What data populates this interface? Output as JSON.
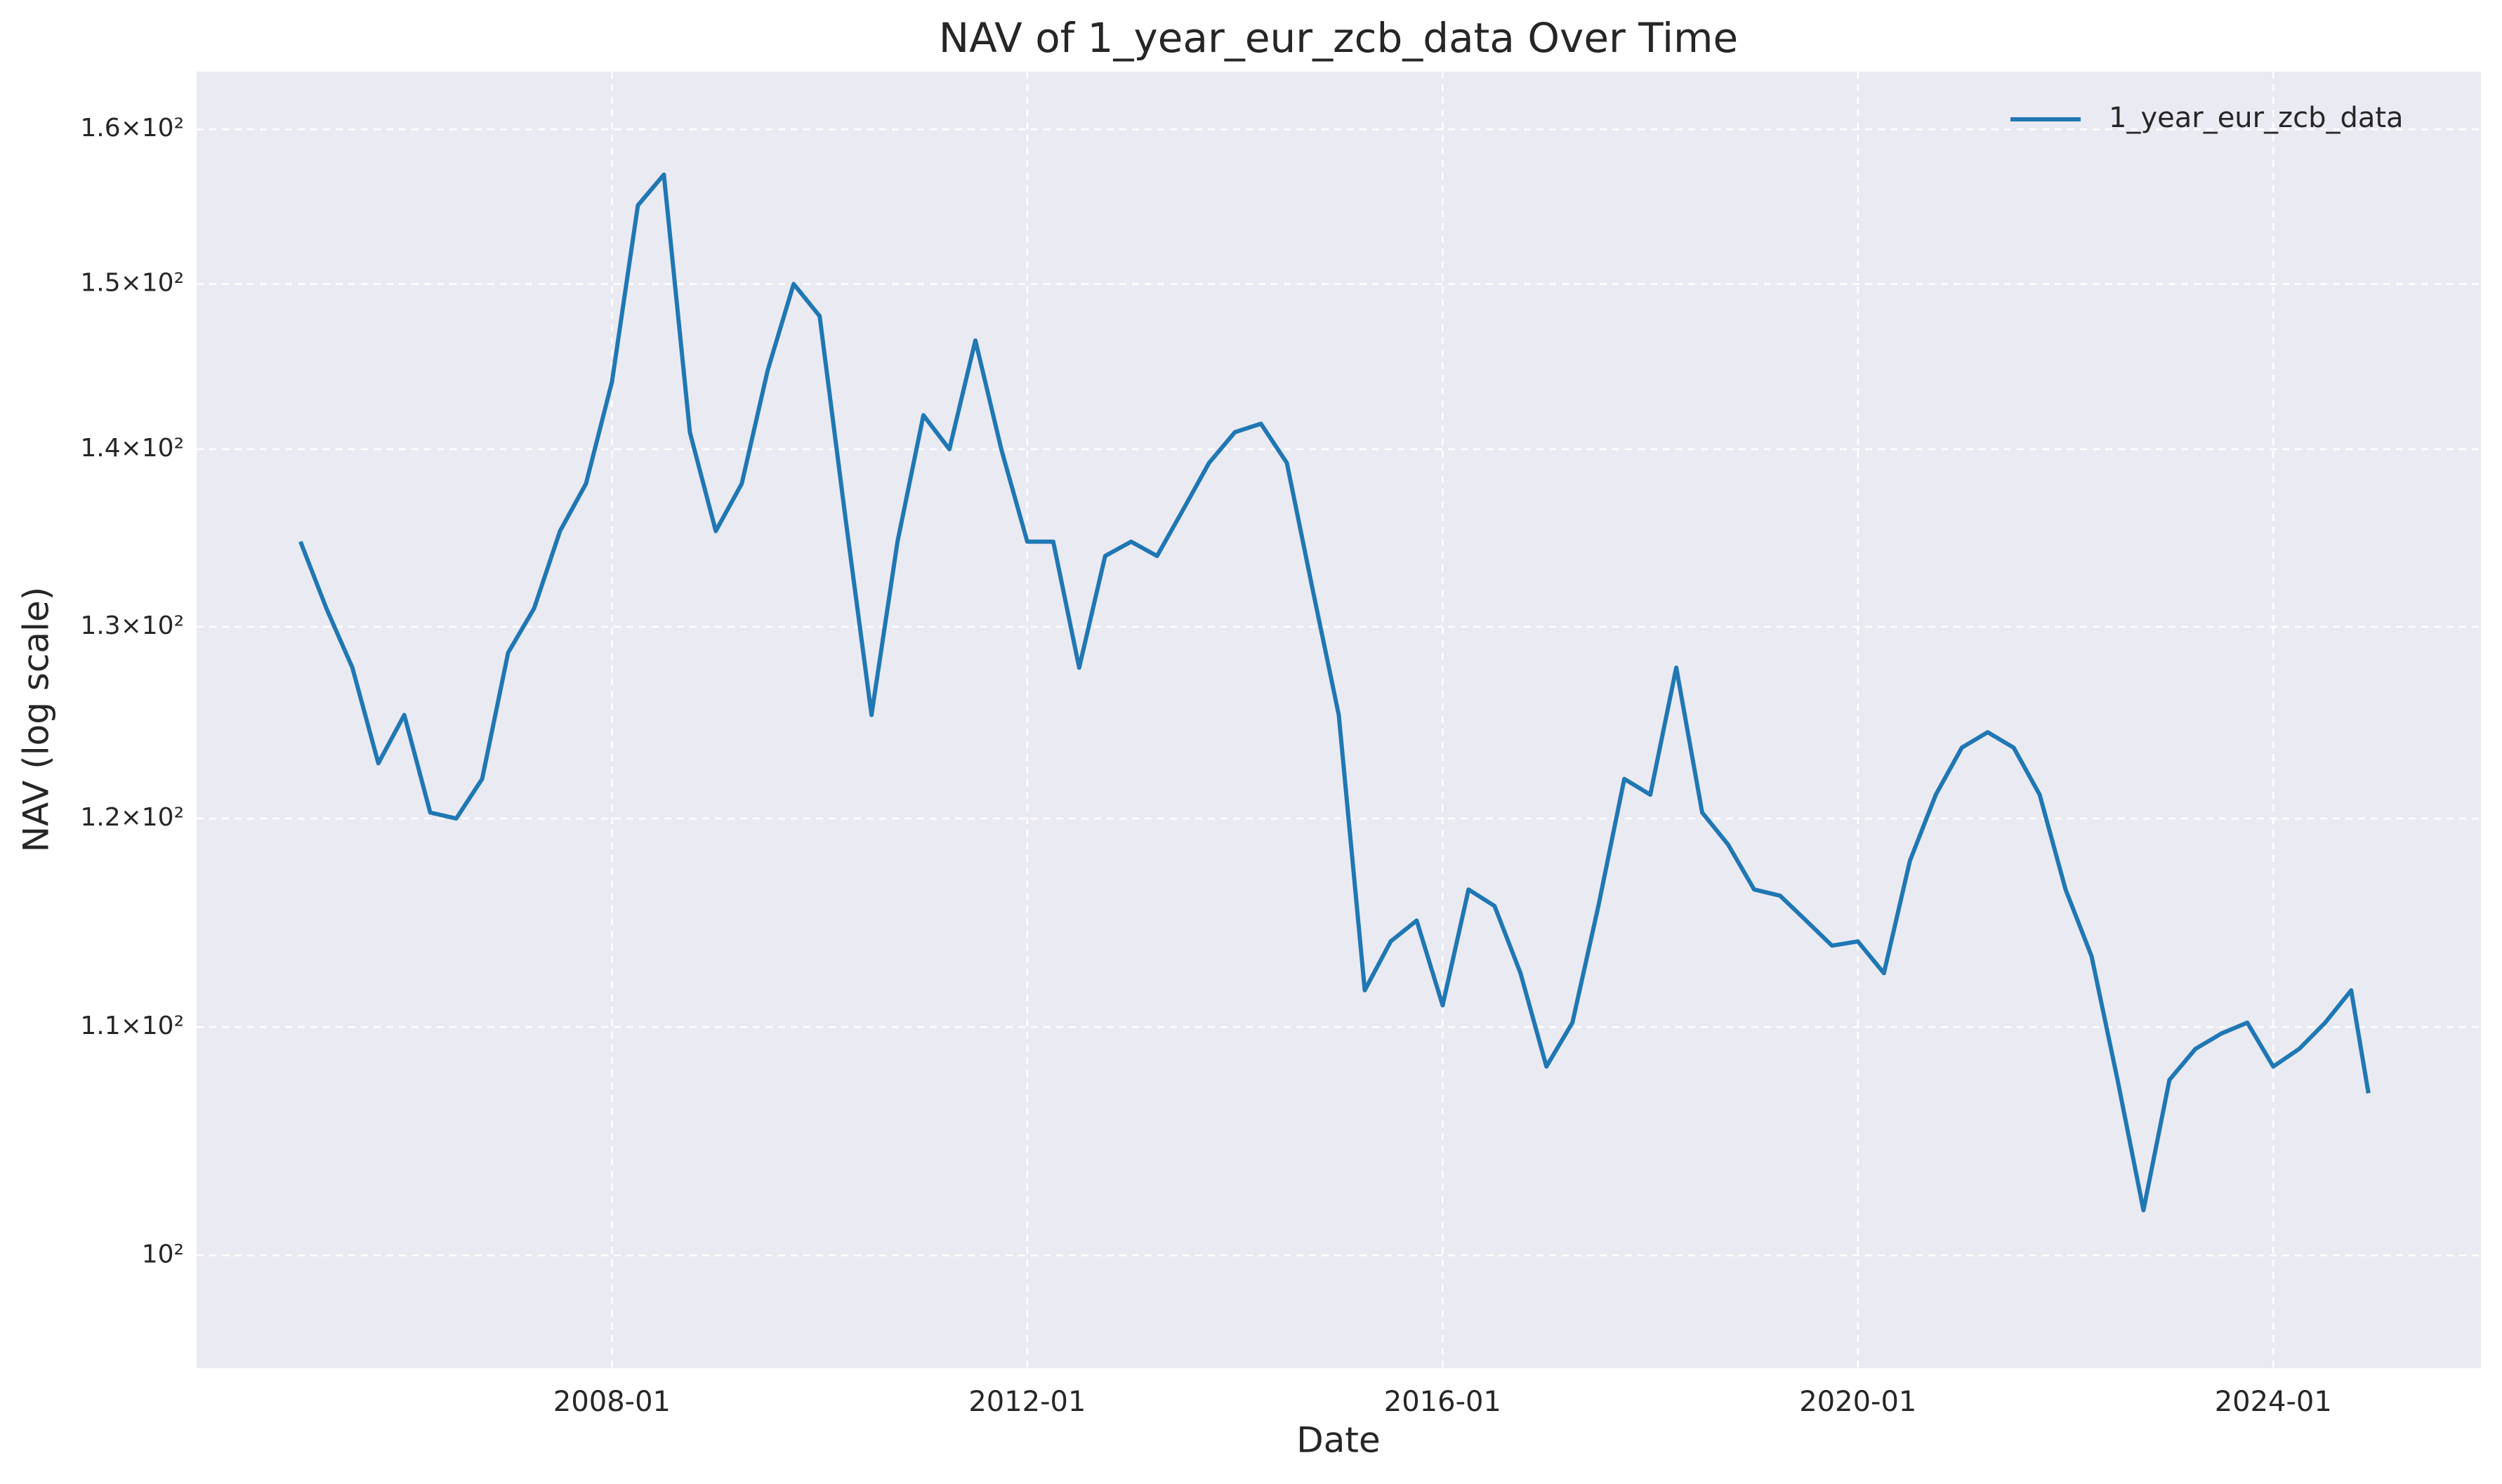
{
  "chart_data": {
    "type": "line",
    "title": "NAV of 1_year_eur_zcb_data Over Time",
    "x_label": "Date",
    "y_label": "NAV (log scale)",
    "x": [
      "2005-01",
      "2005-04",
      "2005-07",
      "2005-10",
      "2006-01",
      "2006-04",
      "2006-07",
      "2006-10",
      "2007-01",
      "2007-04",
      "2007-07",
      "2007-10",
      "2008-01",
      "2008-04",
      "2008-07",
      "2008-10",
      "2009-01",
      "2009-04",
      "2009-07",
      "2009-10",
      "2010-01",
      "2010-04",
      "2010-07",
      "2010-10",
      "2011-01",
      "2011-04",
      "2011-07",
      "2011-10",
      "2012-01",
      "2012-04",
      "2012-07",
      "2012-10",
      "2013-01",
      "2013-04",
      "2013-07",
      "2013-10",
      "2014-01",
      "2014-04",
      "2014-07",
      "2014-10",
      "2015-01",
      "2015-04",
      "2015-07",
      "2015-10",
      "2016-01",
      "2016-04",
      "2016-07",
      "2016-10",
      "2017-01",
      "2017-04",
      "2017-07",
      "2017-10",
      "2018-01",
      "2018-04",
      "2018-07",
      "2018-10",
      "2019-01",
      "2019-04",
      "2019-07",
      "2019-10",
      "2020-01",
      "2020-04",
      "2020-07",
      "2020-10",
      "2021-01",
      "2021-04",
      "2021-07",
      "2021-10",
      "2022-01",
      "2022-04",
      "2022-07",
      "2022-10",
      "2023-01",
      "2023-04",
      "2023-07",
      "2023-10",
      "2024-01",
      "2024-04",
      "2024-07",
      "2024-10",
      "2024-12"
    ],
    "series": [
      {
        "name": "1_year_eur_zcb_data",
        "color": "#1f77b4",
        "values": [
          134.7,
          131,
          127.8,
          122.8,
          125.3,
          120.3,
          120,
          122,
          128.6,
          131,
          135.3,
          138,
          144,
          155,
          157,
          141,
          135.3,
          138,
          144.7,
          150,
          148,
          136,
          125.3,
          134.7,
          142,
          140,
          146.5,
          140,
          134.7,
          134.7,
          127.8,
          133.9,
          134.7,
          133.9,
          136.5,
          139.2,
          141,
          141.5,
          139.2,
          132,
          125.3,
          111.7,
          114,
          115,
          111,
          116.5,
          115.7,
          112.5,
          108.2,
          110.2,
          115.7,
          122,
          121.2,
          127.8,
          120.3,
          118.7,
          116.5,
          116.2,
          115,
          113.8,
          114,
          112.5,
          117.9,
          121.2,
          123.6,
          124.4,
          123.6,
          121.2,
          116.5,
          113.3,
          107.6,
          101.9,
          107.6,
          109,
          109.7,
          110.2,
          108.2,
          109,
          110.2,
          111.7,
          107
        ]
      }
    ],
    "xlim": [
      "2004-01",
      "2026-01"
    ],
    "xticks": [
      "2008-01",
      "2012-01",
      "2016-01",
      "2020-01",
      "2024-01"
    ],
    "ylim": [
      95.4,
      163.9
    ],
    "yticks": [
      {
        "value": 100,
        "label": "10²"
      },
      {
        "value": 110,
        "label": "1.1×10²"
      },
      {
        "value": 120,
        "label": "1.2×10²"
      },
      {
        "value": 130,
        "label": "1.3×10²"
      },
      {
        "value": 140,
        "label": "1.4×10²"
      },
      {
        "value": 150,
        "label": "1.5×10²"
      },
      {
        "value": 160,
        "label": "1.6×10²"
      }
    ],
    "y_scale": "log",
    "grid": true,
    "legend": "upper right"
  }
}
